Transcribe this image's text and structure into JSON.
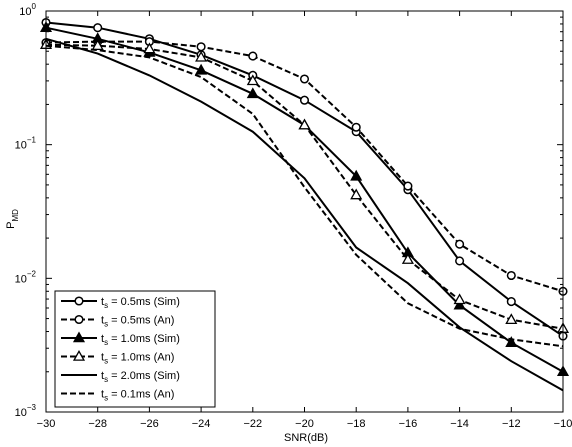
{
  "chart_data": {
    "type": "line",
    "xlabel": "SNR(dB)",
    "ylabel": "P",
    "ylabel_sub": "MD",
    "xlim": [
      -30,
      -10
    ],
    "ylim": [
      0.001,
      1
    ],
    "yscale": "log",
    "x_ticks": [
      {
        "value": -30,
        "label": "−30"
      },
      {
        "value": -28,
        "label": "−28"
      },
      {
        "value": -26,
        "label": "−26"
      },
      {
        "value": -24,
        "label": "−24"
      },
      {
        "value": -22,
        "label": "−22"
      },
      {
        "value": -20,
        "label": "−20"
      },
      {
        "value": -18,
        "label": "−18"
      },
      {
        "value": -16,
        "label": "−16"
      },
      {
        "value": -14,
        "label": "−14"
      },
      {
        "value": -12,
        "label": "−12"
      },
      {
        "value": -10,
        "label": "−10"
      }
    ],
    "y_ticks": [
      {
        "value": 0.001,
        "label": "10",
        "exp": "−3"
      },
      {
        "value": 0.01,
        "label": "10",
        "exp": "−2"
      },
      {
        "value": 0.1,
        "label": "10",
        "exp": "−1"
      },
      {
        "value": 1,
        "label": "10",
        "exp": "0"
      }
    ],
    "grid": false,
    "legend_position": "bottom-left",
    "x": [
      -30,
      -28,
      -26,
      -24,
      -22,
      -20,
      -18,
      -16,
      -14,
      -12,
      -10
    ],
    "series": [
      {
        "name": "= 0.5ms (Sim)",
        "sym": "t",
        "sub": "s",
        "dash": "solid",
        "marker": "circle",
        "values": [
          0.82,
          0.75,
          0.62,
          0.47,
          0.33,
          0.215,
          0.125,
          0.046,
          0.0135,
          0.0067,
          0.0037
        ]
      },
      {
        "name": "= 0.5ms (An)",
        "sym": "t",
        "sub": "s",
        "dash": "dashed",
        "marker": "circle",
        "values": [
          0.58,
          0.59,
          0.59,
          0.54,
          0.46,
          0.31,
          0.135,
          0.049,
          0.018,
          0.0105,
          0.008
        ]
      },
      {
        "name": "= 1.0ms (Sim)",
        "sym": "t",
        "sub": "s",
        "dash": "solid",
        "marker": "triangle-filled",
        "values": [
          0.75,
          0.62,
          0.49,
          0.36,
          0.24,
          0.14,
          0.058,
          0.0155,
          0.0063,
          0.0033,
          0.002
        ]
      },
      {
        "name": "= 1.0ms (An)",
        "sym": "t",
        "sub": "s",
        "dash": "dashed",
        "marker": "triangle-open",
        "values": [
          0.56,
          0.55,
          0.52,
          0.45,
          0.3,
          0.14,
          0.042,
          0.0138,
          0.0069,
          0.0049,
          0.0042
        ]
      },
      {
        "name": "= 2.0ms (Sim)",
        "sym": "t",
        "sub": "s",
        "dash": "solid",
        "marker": "none",
        "values": [
          0.62,
          0.48,
          0.33,
          0.21,
          0.125,
          0.056,
          0.017,
          0.0092,
          0.0043,
          0.0024,
          0.00145
        ]
      },
      {
        "name": "= 0.1ms (An)",
        "sym": "t",
        "sub": "s",
        "dash": "dashed",
        "marker": "none",
        "values": [
          0.55,
          0.51,
          0.45,
          0.32,
          0.17,
          0.048,
          0.015,
          0.0065,
          0.0042,
          0.0035,
          0.0031
        ]
      }
    ]
  }
}
